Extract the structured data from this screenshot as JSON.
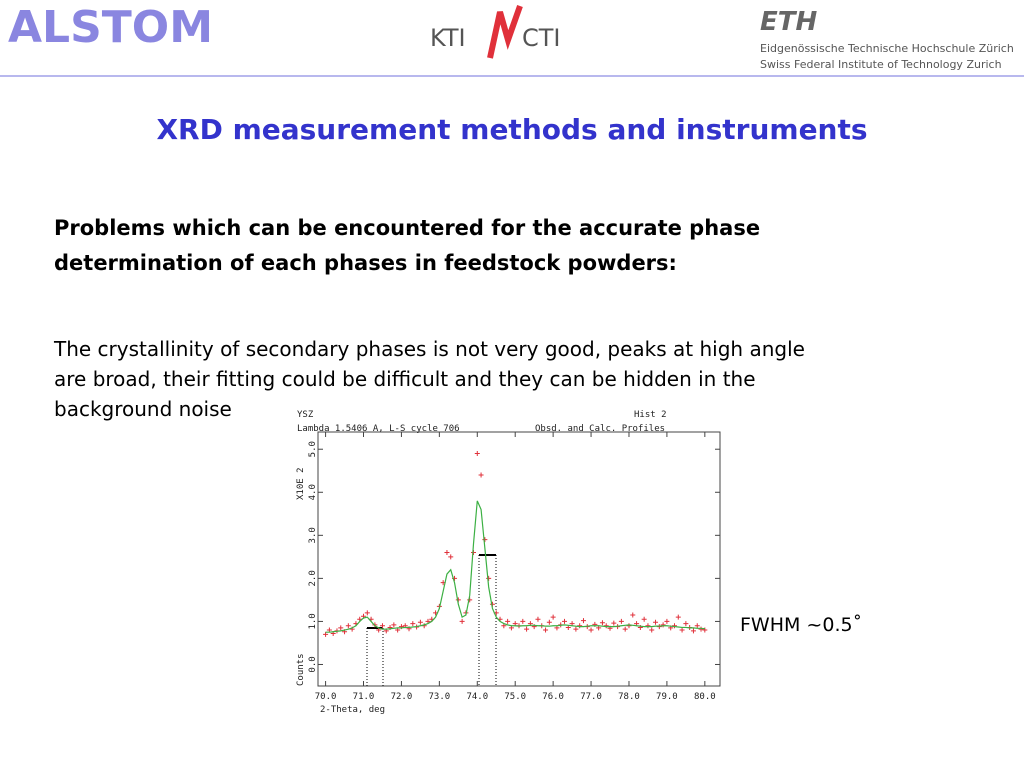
{
  "header": {
    "logo_left": "ALSTOM",
    "logo_center_left": "KTI",
    "logo_center_right": "CTI",
    "logo_right": "ETH",
    "logo_right_line1": "Eidgenössische Technische Hochschule Zürich",
    "logo_right_line2": "Swiss Federal Institute of Technology Zurich"
  },
  "title": "XRD measurement methods and instruments",
  "heading_lines": [
    "Problems which can be encountered for the accurate phase",
    "determination of each phases in feedstock powders:"
  ],
  "paragraph_lines": [
    "The crystallinity of secondary phases is not very good, peaks at high angle",
    "are broad, their fitting could be difficult and they can be hidden in the",
    "background noise"
  ],
  "annotation": "FWHM ~0.5˚",
  "chart_data": {
    "type": "scatter",
    "title": "YSZ",
    "hist_label": "Hist  2",
    "subtitle": "Lambda 1.5406 A, L-S cycle  706",
    "profile_label": "Obsd. and Calc. Profiles",
    "xlabel": "2-Theta, deg",
    "ylabel": "Counts",
    "yscale_label": "X10E  2",
    "x": [
      70,
      70.1,
      70.2,
      70.3,
      70.4,
      70.5,
      70.6,
      70.7,
      70.8,
      70.9,
      71,
      71.1,
      71.2,
      71.3,
      71.4,
      71.5,
      71.6,
      71.7,
      71.8,
      71.9,
      72,
      72.1,
      72.2,
      72.3,
      72.4,
      72.5,
      72.6,
      72.7,
      72.8,
      72.9,
      73,
      73.1,
      73.2,
      73.3,
      73.4,
      73.5,
      73.6,
      73.7,
      73.8,
      73.9,
      74,
      74.1,
      74.2,
      74.3,
      74.4,
      74.5,
      74.6,
      74.7,
      74.8,
      74.9,
      75,
      75.1,
      75.2,
      75.3,
      75.4,
      75.5,
      75.6,
      75.7,
      75.8,
      75.9,
      76,
      76.1,
      76.2,
      76.3,
      76.4,
      76.5,
      76.6,
      76.7,
      76.8,
      76.9,
      77,
      77.1,
      77.2,
      77.3,
      77.4,
      77.5,
      77.6,
      77.7,
      77.8,
      77.9,
      78,
      78.1,
      78.2,
      78.3,
      78.4,
      78.5,
      78.6,
      78.7,
      78.8,
      78.9,
      79,
      79.1,
      79.2,
      79.3,
      79.4,
      79.5,
      79.6,
      79.7,
      79.8,
      79.9,
      80
    ],
    "series": [
      {
        "style": "markers",
        "color": "#e0303a",
        "values": [
          0.7,
          0.8,
          0.72,
          0.78,
          0.85,
          0.76,
          0.9,
          0.82,
          0.95,
          1.05,
          1.12,
          1.2,
          1.05,
          0.92,
          0.8,
          0.9,
          0.78,
          0.86,
          0.92,
          0.8,
          0.88,
          0.9,
          0.83,
          0.95,
          0.87,
          0.98,
          0.9,
          1.0,
          1.05,
          1.2,
          1.35,
          1.9,
          2.6,
          2.5,
          2.0,
          1.5,
          1.0,
          1.2,
          1.5,
          2.6,
          4.9,
          4.4,
          2.9,
          2.0,
          1.4,
          1.2,
          1.05,
          0.9,
          1.0,
          0.85,
          0.95,
          0.9,
          1.0,
          0.82,
          0.95,
          0.88,
          1.05,
          0.9,
          0.8,
          0.98,
          1.1,
          0.85,
          0.92,
          1.0,
          0.86,
          0.95,
          0.82,
          0.9,
          1.02,
          0.88,
          0.8,
          0.93,
          0.85,
          0.97,
          0.9,
          0.84,
          0.96,
          0.88,
          1.0,
          0.82,
          0.9,
          1.15,
          0.95,
          0.86,
          1.05,
          0.9,
          0.8,
          0.98,
          0.88,
          0.92,
          1.0,
          0.85,
          0.9,
          1.1,
          0.8,
          0.95,
          0.86,
          0.78,
          0.9,
          0.82,
          0.8
        ]
      },
      {
        "style": "line",
        "color": "#3cb043",
        "values": [
          0.75,
          0.75,
          0.76,
          0.77,
          0.78,
          0.8,
          0.82,
          0.85,
          0.9,
          1.0,
          1.08,
          1.1,
          1.0,
          0.9,
          0.85,
          0.82,
          0.82,
          0.83,
          0.84,
          0.85,
          0.85,
          0.86,
          0.86,
          0.87,
          0.88,
          0.9,
          0.92,
          0.95,
          1.0,
          1.1,
          1.3,
          1.7,
          2.1,
          2.2,
          1.9,
          1.4,
          1.1,
          1.15,
          1.6,
          2.8,
          3.8,
          3.6,
          2.7,
          1.8,
          1.3,
          1.1,
          1.0,
          0.95,
          0.92,
          0.9,
          0.9,
          0.89,
          0.9,
          0.9,
          0.91,
          0.91,
          0.9,
          0.9,
          0.89,
          0.89,
          0.9,
          0.9,
          0.91,
          0.92,
          0.91,
          0.9,
          0.89,
          0.88,
          0.88,
          0.89,
          0.9,
          0.9,
          0.9,
          0.89,
          0.88,
          0.88,
          0.88,
          0.89,
          0.9,
          0.91,
          0.92,
          0.91,
          0.9,
          0.89,
          0.88,
          0.88,
          0.88,
          0.89,
          0.89,
          0.9,
          0.9,
          0.89,
          0.88,
          0.87,
          0.86,
          0.86,
          0.85,
          0.85,
          0.84,
          0.84,
          0.83
        ]
      }
    ],
    "xlim": [
      69.8,
      80.4
    ],
    "ylim": [
      -0.5,
      5.4
    ],
    "xticks": [
      {
        "value": 70,
        "label": "70.0"
      },
      {
        "value": 71,
        "label": "71.0"
      },
      {
        "value": 72,
        "label": "72.0"
      },
      {
        "value": 73,
        "label": "73.0"
      },
      {
        "value": 74,
        "label": "74.0"
      },
      {
        "value": 75,
        "label": "75.0"
      },
      {
        "value": 76,
        "label": "76.0"
      },
      {
        "value": 77,
        "label": "77.0"
      },
      {
        "value": 78,
        "label": "78.0"
      },
      {
        "value": 79,
        "label": "79.0"
      },
      {
        "value": 80,
        "label": "80.0"
      }
    ],
    "yticks": [
      {
        "value": 0,
        "label": "0.0"
      },
      {
        "value": 1,
        "label": "1.0"
      },
      {
        "value": 2,
        "label": "2.0"
      },
      {
        "value": 3,
        "label": "3.0"
      },
      {
        "value": 4,
        "label": "4.0"
      },
      {
        "value": 5,
        "label": "5.0"
      }
    ],
    "grid": false
  }
}
